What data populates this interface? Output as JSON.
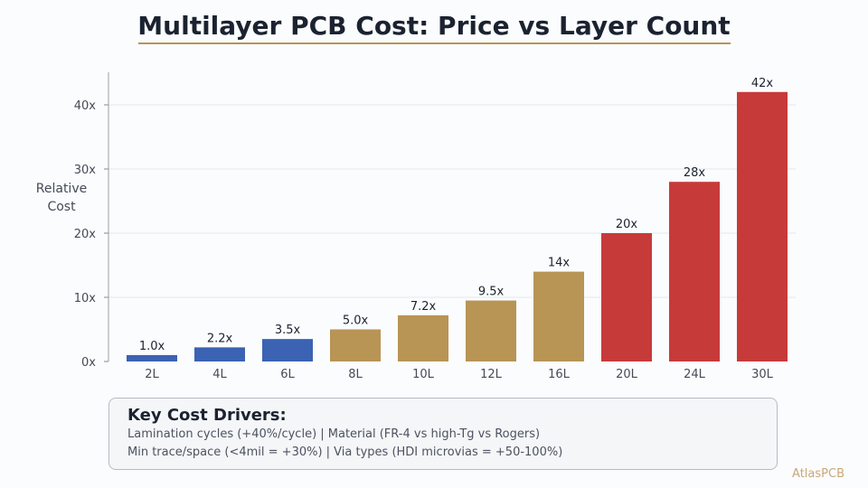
{
  "title": "Multilayer PCB Cost: Price vs Layer Count",
  "colors": {
    "accent": "#b89455",
    "blue": "#3b62b3",
    "tan": "#b89455",
    "red": "#c73a3a"
  },
  "chart_data": {
    "type": "bar",
    "title": "Multilayer PCB Cost: Price vs Layer Count",
    "xlabel": "",
    "ylabel": "Relative Cost",
    "ylim": [
      0,
      45
    ],
    "yticks": [
      {
        "value": 0,
        "label": "0x"
      },
      {
        "value": 10,
        "label": "10x"
      },
      {
        "value": 20,
        "label": "20x"
      },
      {
        "value": 30,
        "label": "30x"
      },
      {
        "value": 40,
        "label": "40x"
      }
    ],
    "grid": true,
    "categories": [
      "2L",
      "4L",
      "6L",
      "8L",
      "10L",
      "12L",
      "16L",
      "20L",
      "24L",
      "30L"
    ],
    "values": [
      1.0,
      2.2,
      3.5,
      5.0,
      7.2,
      9.5,
      14,
      20,
      28,
      42
    ],
    "value_labels": [
      "1.0x",
      "2.2x",
      "3.5x",
      "5.0x",
      "7.2x",
      "9.5x",
      "14x",
      "20x",
      "28x",
      "42x"
    ],
    "bar_colors": [
      "#3b62b3",
      "#3b62b3",
      "#3b62b3",
      "#b89455",
      "#b89455",
      "#b89455",
      "#b89455",
      "#c73a3a",
      "#c73a3a",
      "#c73a3a"
    ]
  },
  "drivers": {
    "title": "Key Cost Drivers:",
    "line1": "Lamination cycles (+40%/cycle)  |  Material (FR-4 vs high-Tg vs Rogers)",
    "line2": "Min trace/space (<4mil = +30%)  |  Via types (HDI microvias = +50-100%)"
  },
  "brand": "AtlasPCB"
}
